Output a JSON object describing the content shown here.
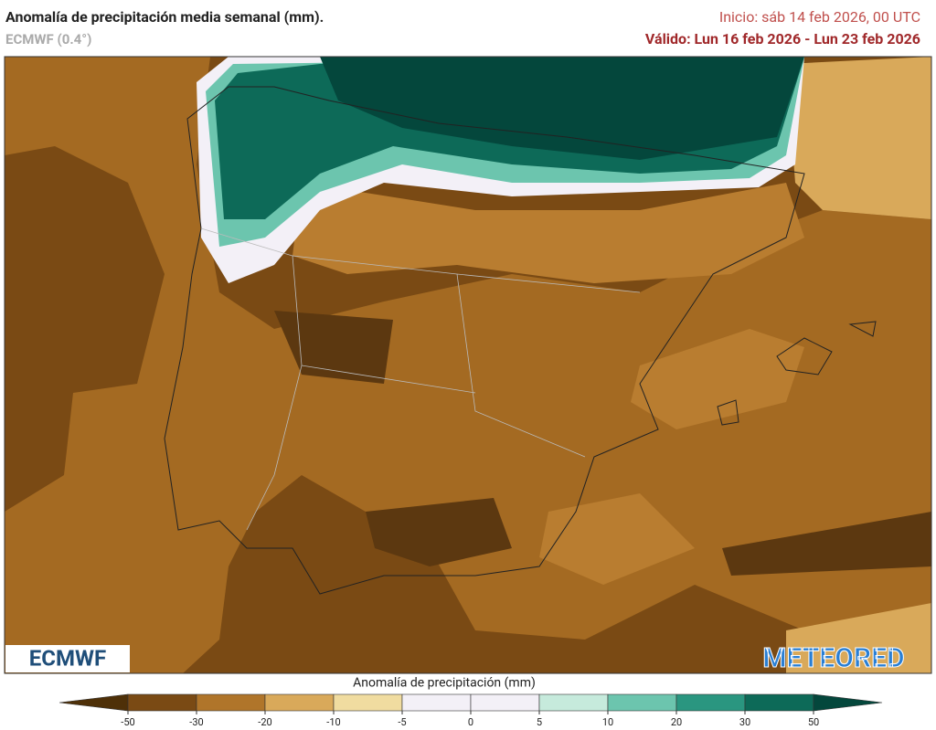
{
  "header": {
    "title": "Anomalía de precipitación media semanal (mm).",
    "model": "ECMWF (0.4°)",
    "init": "Inicio:  sáb 14 feb 2026, 00 UTC",
    "valid": "Válido: Lun 16 feb 2026 - Lun 23 feb 2026"
  },
  "logos": {
    "left": "ECMWF",
    "right": "METEORED"
  },
  "legend": {
    "title": "Anomalía de precipitación (mm)",
    "ticks": [
      -50,
      -30,
      -20,
      -10,
      -5,
      0,
      5,
      10,
      20,
      30,
      50
    ],
    "colors": [
      "#4e3008",
      "#7a4a14",
      "#b0752a",
      "#d9a95a",
      "#f0dca0",
      "#f3f0f7",
      "#f3f0f7",
      "#c6eadc",
      "#6cc5ae",
      "#2a9680",
      "#0d6a58",
      "#04473c"
    ]
  }
}
